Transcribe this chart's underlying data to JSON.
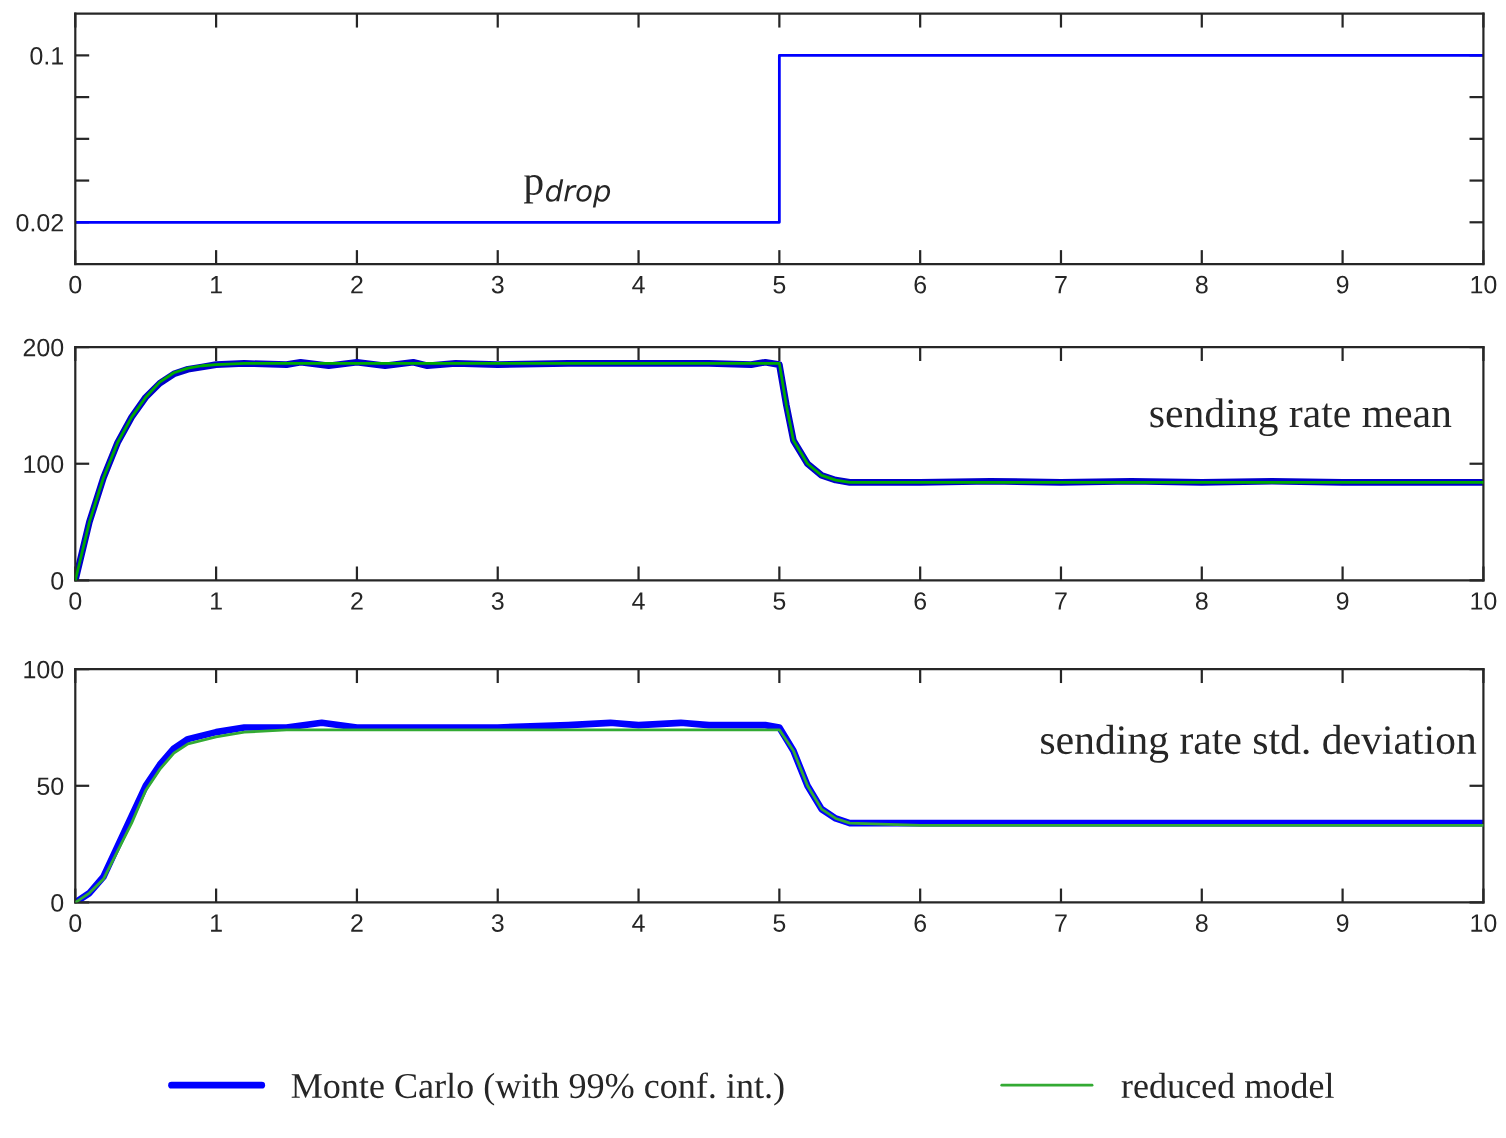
{
  "chart_data": [
    {
      "type": "step",
      "x": [
        0,
        5,
        10
      ],
      "series": [
        {
          "color": "#0000ff",
          "values": [
            0.02,
            0.1,
            0.1
          ]
        }
      ],
      "xlim": [
        0,
        10
      ],
      "xticks": [
        0,
        1,
        2,
        3,
        4,
        5,
        6,
        7,
        8,
        9,
        10
      ],
      "ylim": [
        0,
        0.12
      ],
      "yticks": [
        0.02,
        {
          "value": 0.04,
          "label": null
        },
        {
          "value": 0.06,
          "label": null
        },
        {
          "value": 0.08,
          "label": null
        },
        0.1
      ],
      "annotations": [
        "p$_{drop}$"
      ],
      "grid": false
    },
    {
      "type": "line",
      "series": [
        {
          "color": "#0000cc",
          "x": [
            0,
            0.1,
            0.2,
            0.3,
            0.4,
            0.5,
            0.6,
            0.7,
            0.8,
            0.9,
            1.0,
            1.2,
            1.5,
            1.6,
            1.8,
            2.0,
            2.2,
            2.4,
            2.5,
            2.7,
            3.0,
            3.5,
            4.0,
            4.5,
            4.8,
            4.9,
            5.0,
            5.05,
            5.1,
            5.2,
            5.3,
            5.4,
            5.5,
            6.0,
            6.5,
            7.0,
            7.5,
            8.0,
            8.5,
            9.0,
            9.5,
            10
          ],
          "values": [
            0,
            50,
            88,
            118,
            140,
            157,
            169,
            177,
            181,
            183,
            185,
            186,
            185,
            187,
            184,
            187,
            184,
            187,
            184,
            186,
            185,
            186,
            186,
            186,
            185,
            187,
            185,
            150,
            120,
            100,
            90,
            86,
            84,
            84,
            85,
            84,
            85,
            84,
            85,
            84,
            84,
            84
          ]
        },
        {
          "color": "#00aa00",
          "x": [
            0,
            0.1,
            0.2,
            0.3,
            0.4,
            0.5,
            0.6,
            0.7,
            0.8,
            0.9,
            1.0,
            1.2,
            1.5,
            2.0,
            3.0,
            4.0,
            5.0,
            5.05,
            5.1,
            5.2,
            5.3,
            5.4,
            5.5,
            6.0,
            10
          ],
          "values": [
            0,
            50,
            88,
            118,
            140,
            157,
            170,
            178,
            182,
            184,
            185,
            186,
            186,
            186,
            186,
            186,
            186,
            150,
            120,
            100,
            90,
            86,
            84,
            84,
            84
          ]
        }
      ],
      "xlim": [
        0,
        10
      ],
      "xticks": [
        0,
        1,
        2,
        3,
        4,
        5,
        6,
        7,
        8,
        9,
        10
      ],
      "ylim": [
        0,
        200
      ],
      "yticks": [
        0,
        100,
        200
      ],
      "annotations": [
        "sending rate mean"
      ],
      "grid": false
    },
    {
      "type": "line",
      "series": [
        {
          "name": "Monte Carlo (with 99% conf. int.)",
          "color": "#0000ff",
          "x": [
            0,
            0.1,
            0.2,
            0.3,
            0.4,
            0.5,
            0.6,
            0.7,
            0.8,
            1.0,
            1.2,
            1.5,
            1.75,
            2.0,
            2.5,
            3.0,
            3.5,
            3.8,
            4.0,
            4.3,
            4.5,
            4.9,
            5.0,
            5.1,
            5.2,
            5.3,
            5.4,
            5.5,
            6.0,
            7.0,
            8.0,
            9.0,
            10
          ],
          "values": [
            0,
            4,
            11,
            24,
            37,
            50,
            59,
            66,
            70,
            73,
            75,
            75,
            77,
            75,
            75,
            75,
            76,
            77,
            76,
            77,
            76,
            76,
            75,
            65,
            50,
            40,
            36,
            34,
            34,
            34,
            34,
            34,
            34
          ]
        },
        {
          "name": "reduced model",
          "color": "#33aa33",
          "x": [
            0,
            0.1,
            0.2,
            0.3,
            0.4,
            0.5,
            0.6,
            0.7,
            0.8,
            1.0,
            1.2,
            1.5,
            2.0,
            3.0,
            4.0,
            5.0,
            5.1,
            5.2,
            5.3,
            5.4,
            5.5,
            6.0,
            10
          ],
          "values": [
            0,
            4,
            10,
            22,
            34,
            48,
            57,
            64,
            68,
            71,
            73,
            74,
            74,
            74,
            74,
            74,
            65,
            50,
            40,
            36,
            34,
            33,
            33
          ]
        }
      ],
      "xlim": [
        0,
        10
      ],
      "xticks": [
        0,
        1,
        2,
        3,
        4,
        5,
        6,
        7,
        8,
        9,
        10
      ],
      "ylim": [
        0,
        100
      ],
      "yticks": [
        0,
        50,
        100
      ],
      "annotations": [
        "sending rate std. deviation"
      ],
      "grid": false,
      "legend": "bottom"
    }
  ]
}
